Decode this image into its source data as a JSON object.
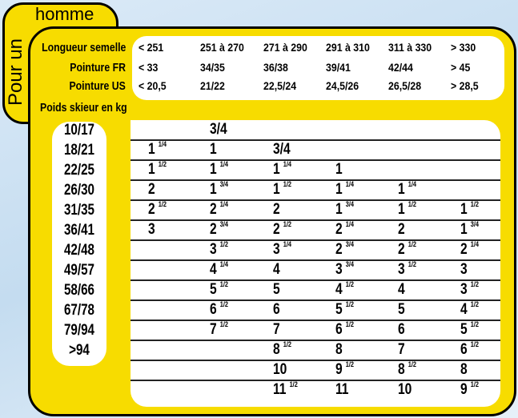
{
  "tab": {
    "title": "homme",
    "side_label": "Pour un"
  },
  "header": {
    "labels": [
      "Longueur semelle",
      "Pointure FR",
      "Pointure US"
    ],
    "rows": [
      [
        "< 251",
        "251 à 270",
        "271 à 290",
        "291 à 310",
        "311 à 330",
        "> 330"
      ],
      [
        "< 33",
        "34/35",
        "36/38",
        "39/41",
        "42/44",
        "> 45"
      ],
      [
        "< 20,5",
        "21/22",
        "22,5/24",
        "24,5/26",
        "26,5/28",
        "> 28,5"
      ]
    ]
  },
  "weight_title": "Poids skieur en kg",
  "weights": [
    "10/17",
    "18/21",
    "22/25",
    "26/30",
    "31/35",
    "36/41",
    "42/48",
    "49/57",
    "58/66",
    "67/78",
    "79/94",
    ">94"
  ],
  "table": [
    [
      [
        "",
        ""
      ],
      [
        "",
        "3/4"
      ],
      [
        "",
        ""
      ],
      [
        "",
        ""
      ],
      [
        "",
        ""
      ],
      [
        "",
        ""
      ]
    ],
    [
      [
        "1",
        "1/4"
      ],
      [
        "1",
        ""
      ],
      [
        "",
        "3/4"
      ],
      [
        "",
        ""
      ],
      [
        "",
        ""
      ],
      [
        "",
        ""
      ]
    ],
    [
      [
        "1",
        "1/2"
      ],
      [
        "1",
        "1/4"
      ],
      [
        "1",
        "1/4"
      ],
      [
        "1",
        ""
      ],
      [
        "",
        ""
      ],
      [
        "",
        ""
      ]
    ],
    [
      [
        "2",
        ""
      ],
      [
        "1",
        "3/4"
      ],
      [
        "1",
        "1/2"
      ],
      [
        "1",
        "1/4"
      ],
      [
        "1",
        "1/4"
      ],
      [
        "",
        ""
      ]
    ],
    [
      [
        "2",
        "1/2"
      ],
      [
        "2",
        "1/4"
      ],
      [
        "2",
        ""
      ],
      [
        "1",
        "3/4"
      ],
      [
        "1",
        "1/2"
      ],
      [
        "1",
        "1/2"
      ]
    ],
    [
      [
        "3",
        ""
      ],
      [
        "2",
        "3/4"
      ],
      [
        "2",
        "1/2"
      ],
      [
        "2",
        "1/4"
      ],
      [
        "2",
        ""
      ],
      [
        "1",
        "3/4"
      ]
    ],
    [
      [
        "",
        ""
      ],
      [
        "3",
        "1/2"
      ],
      [
        "3",
        "1/4"
      ],
      [
        "2",
        "3/4"
      ],
      [
        "2",
        "1/2"
      ],
      [
        "2",
        "1/4"
      ]
    ],
    [
      [
        "",
        ""
      ],
      [
        "4",
        "1/4"
      ],
      [
        "4",
        ""
      ],
      [
        "3",
        "3/4"
      ],
      [
        "3",
        "1/2"
      ],
      [
        "3",
        ""
      ]
    ],
    [
      [
        "",
        ""
      ],
      [
        "5",
        "1/2"
      ],
      [
        "5",
        ""
      ],
      [
        "4",
        "1/2"
      ],
      [
        "4",
        ""
      ],
      [
        "3",
        "1/2"
      ]
    ],
    [
      [
        "",
        ""
      ],
      [
        "6",
        "1/2"
      ],
      [
        "6",
        ""
      ],
      [
        "5",
        "1/2"
      ],
      [
        "5",
        ""
      ],
      [
        "4",
        "1/2"
      ]
    ],
    [
      [
        "",
        ""
      ],
      [
        "7",
        "1/2"
      ],
      [
        "7",
        ""
      ],
      [
        "6",
        "1/2"
      ],
      [
        "6",
        ""
      ],
      [
        "5",
        "1/2"
      ]
    ],
    [
      [
        "",
        ""
      ],
      [
        "",
        ""
      ],
      [
        "8",
        "1/2"
      ],
      [
        "8",
        ""
      ],
      [
        "7",
        ""
      ],
      [
        "6",
        "1/2"
      ]
    ],
    [
      [
        "",
        ""
      ],
      [
        "",
        ""
      ],
      [
        "10",
        ""
      ],
      [
        "9",
        "1/2"
      ],
      [
        "8",
        "1/2"
      ],
      [
        "8",
        ""
      ]
    ],
    [
      [
        "",
        ""
      ],
      [
        "",
        ""
      ],
      [
        "11",
        "1/2"
      ],
      [
        "11",
        ""
      ],
      [
        "10",
        ""
      ],
      [
        "9",
        "1/2"
      ]
    ]
  ],
  "colors": {
    "panel": "#f7dc00",
    "border": "#000000",
    "background": "#c4dcf0"
  }
}
